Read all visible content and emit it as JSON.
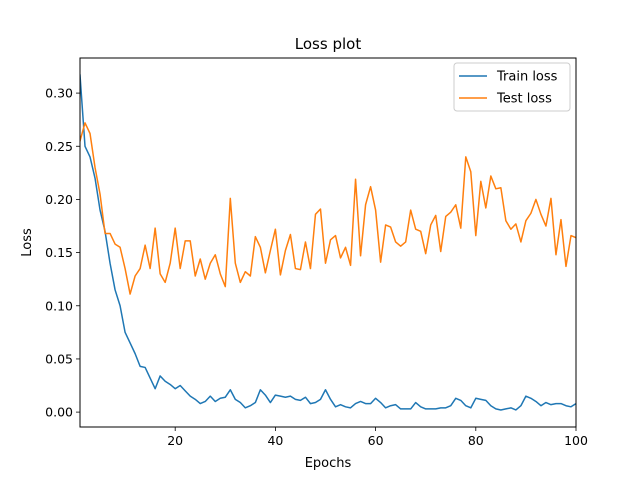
{
  "chart_data": {
    "type": "line",
    "title": "Loss plot",
    "xlabel": "Epochs",
    "ylabel": "Loss",
    "xlim": [
      1,
      100
    ],
    "ylim": [
      -0.014,
      0.333
    ],
    "xticks": [
      20,
      40,
      60,
      80,
      100
    ],
    "yticks": [
      0.0,
      0.05,
      0.1,
      0.15,
      0.2,
      0.25,
      0.3
    ],
    "grid": false,
    "legend_position": "top-right",
    "x": [
      1,
      2,
      3,
      4,
      5,
      6,
      7,
      8,
      9,
      10,
      11,
      12,
      13,
      14,
      15,
      16,
      17,
      18,
      19,
      20,
      21,
      22,
      23,
      24,
      25,
      26,
      27,
      28,
      29,
      30,
      31,
      32,
      33,
      34,
      35,
      36,
      37,
      38,
      39,
      40,
      41,
      42,
      43,
      44,
      45,
      46,
      47,
      48,
      49,
      50,
      51,
      52,
      53,
      54,
      55,
      56,
      57,
      58,
      59,
      60,
      61,
      62,
      63,
      64,
      65,
      66,
      67,
      68,
      69,
      70,
      71,
      72,
      73,
      74,
      75,
      76,
      77,
      78,
      79,
      80,
      81,
      82,
      83,
      84,
      85,
      86,
      87,
      88,
      89,
      90,
      91,
      92,
      93,
      94,
      95,
      96,
      97,
      98,
      99,
      100
    ],
    "series": [
      {
        "name": "Train loss",
        "color": "#1f77b4",
        "values": [
          0.317,
          0.25,
          0.24,
          0.22,
          0.19,
          0.17,
          0.14,
          0.115,
          0.1,
          0.075,
          0.065,
          0.055,
          0.043,
          0.042,
          0.032,
          0.022,
          0.034,
          0.029,
          0.026,
          0.022,
          0.025,
          0.02,
          0.015,
          0.012,
          0.008,
          0.01,
          0.015,
          0.01,
          0.013,
          0.014,
          0.021,
          0.012,
          0.009,
          0.004,
          0.006,
          0.009,
          0.021,
          0.016,
          0.009,
          0.016,
          0.015,
          0.014,
          0.015,
          0.012,
          0.011,
          0.014,
          0.008,
          0.009,
          0.012,
          0.021,
          0.012,
          0.005,
          0.007,
          0.005,
          0.004,
          0.008,
          0.01,
          0.008,
          0.008,
          0.013,
          0.009,
          0.004,
          0.006,
          0.007,
          0.003,
          0.003,
          0.003,
          0.009,
          0.005,
          0.003,
          0.003,
          0.003,
          0.004,
          0.004,
          0.006,
          0.013,
          0.011,
          0.006,
          0.004,
          0.013,
          0.012,
          0.011,
          0.006,
          0.003,
          0.002,
          0.003,
          0.004,
          0.002,
          0.006,
          0.015,
          0.013,
          0.01,
          0.006,
          0.009,
          0.007,
          0.008,
          0.008,
          0.006,
          0.005,
          0.008
        ]
      },
      {
        "name": "Test loss",
        "color": "#ff7f0e",
        "values": [
          0.255,
          0.272,
          0.262,
          0.23,
          0.205,
          0.168,
          0.168,
          0.158,
          0.155,
          0.135,
          0.111,
          0.128,
          0.135,
          0.157,
          0.135,
          0.173,
          0.13,
          0.122,
          0.14,
          0.173,
          0.135,
          0.161,
          0.161,
          0.128,
          0.144,
          0.125,
          0.14,
          0.148,
          0.13,
          0.118,
          0.201,
          0.14,
          0.122,
          0.132,
          0.128,
          0.165,
          0.155,
          0.131,
          0.152,
          0.172,
          0.129,
          0.152,
          0.167,
          0.135,
          0.134,
          0.16,
          0.135,
          0.186,
          0.191,
          0.14,
          0.162,
          0.166,
          0.145,
          0.155,
          0.138,
          0.219,
          0.147,
          0.195,
          0.212,
          0.19,
          0.141,
          0.176,
          0.174,
          0.16,
          0.156,
          0.16,
          0.19,
          0.172,
          0.17,
          0.149,
          0.176,
          0.185,
          0.151,
          0.184,
          0.188,
          0.195,
          0.173,
          0.24,
          0.226,
          0.166,
          0.217,
          0.192,
          0.222,
          0.21,
          0.211,
          0.18,
          0.172,
          0.177,
          0.16,
          0.18,
          0.187,
          0.2,
          0.186,
          0.175,
          0.201,
          0.148,
          0.181,
          0.137,
          0.166,
          0.164
        ]
      }
    ]
  }
}
